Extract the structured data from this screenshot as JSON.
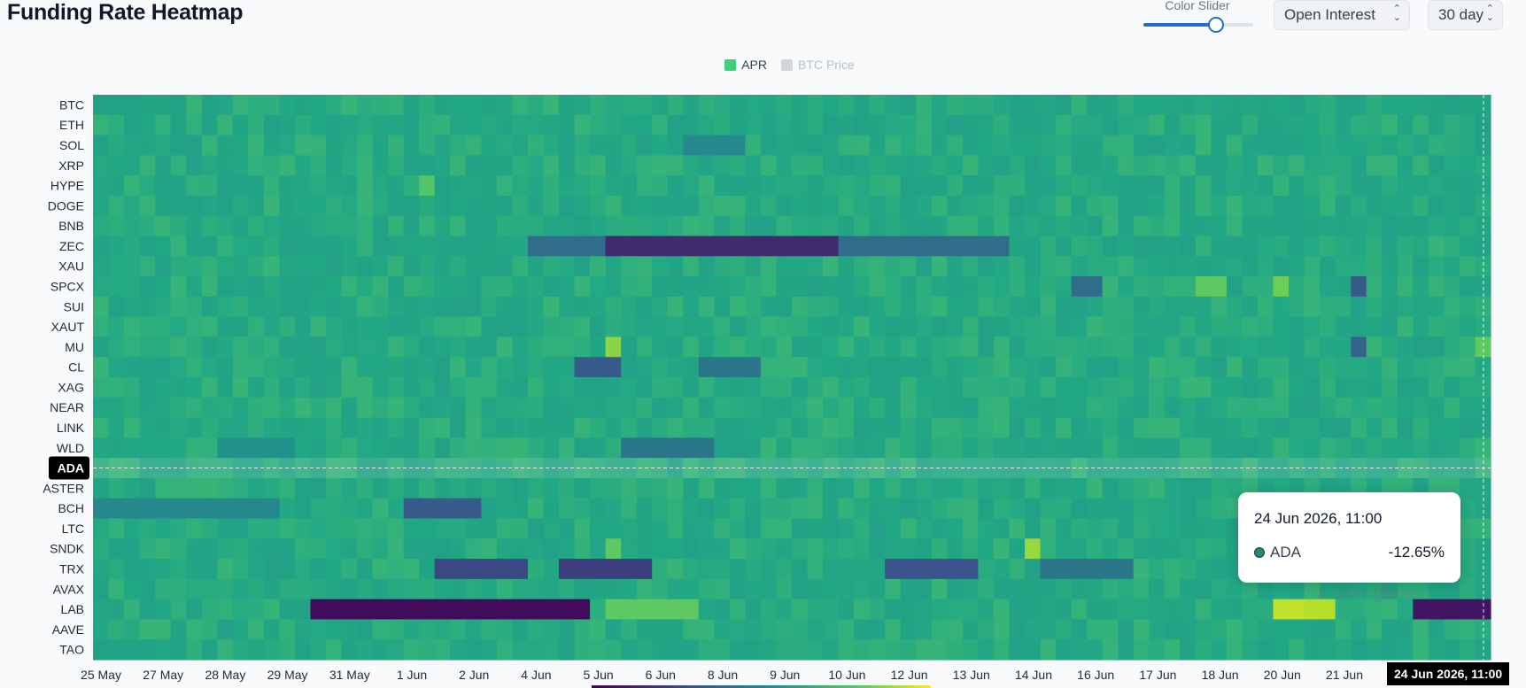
{
  "header": {
    "title": "Funding Rate Heatmap",
    "slider_label": "Color Slider",
    "slider_fraction": 0.66,
    "metric_select": "Open Interest",
    "range_select": "30 day"
  },
  "tooltip": {
    "date": "24 Jun 2026, 11:00",
    "series_name": "ADA",
    "value": "-12.65%"
  },
  "watermark": "coinglass",
  "colors": {
    "accent": "#1d6fd1",
    "apr": "#3ecf78",
    "btc_price": "#d1d5db",
    "highlight_row": "#000000"
  },
  "chart_data": {
    "type": "heatmap",
    "title": "Funding Rate Heatmap",
    "legend": [
      {
        "name": "APR",
        "color": "#3ecf78",
        "active": true
      },
      {
        "name": "BTC Price",
        "color": "#d1d5db",
        "active": false
      }
    ],
    "legend_placement": "top-center",
    "y_categories": [
      "BTC",
      "ETH",
      "SOL",
      "XRP",
      "HYPE",
      "DOGE",
      "BNB",
      "ZEC",
      "XAU",
      "SPCX",
      "SUI",
      "XAUT",
      "MU",
      "CL",
      "XAG",
      "NEAR",
      "LINK",
      "WLD",
      "ADA",
      "ASTER",
      "BCH",
      "LTC",
      "SNDK",
      "TRX",
      "AVAX",
      "LAB",
      "AAVE",
      "TAO"
    ],
    "x_tick_labels": [
      "25 May",
      "27 May",
      "28 May",
      "29 May",
      "31 May",
      "1 Jun",
      "2 Jun",
      "4 Jun",
      "5 Jun",
      "6 Jun",
      "8 Jun",
      "9 Jun",
      "10 Jun",
      "12 Jun",
      "13 Jun",
      "14 Jun",
      "16 Jun",
      "17 Jun",
      "18 Jun",
      "20 Jun",
      "21 Jun"
    ],
    "x_pointer_label": "24 Jun 2026, 11:00",
    "highlighted_category": "ADA",
    "columns": 90,
    "value_unit": "APR %",
    "base_value": 10,
    "hotspots": [
      {
        "symbol": "ZEC",
        "from": 28,
        "to": 58,
        "value": -45
      },
      {
        "symbol": "ZEC",
        "from": 33,
        "to": 47,
        "value": -80
      },
      {
        "symbol": "LAB",
        "from": 14,
        "to": 31,
        "value": -95
      },
      {
        "symbol": "LAB",
        "from": 76,
        "to": 77,
        "value": 75
      },
      {
        "symbol": "LAB",
        "from": 78,
        "to": 79,
        "value": 70
      },
      {
        "symbol": "LAB",
        "from": 85,
        "to": 89,
        "value": -90
      },
      {
        "symbol": "LAB",
        "from": 33,
        "to": 38,
        "value": 40
      },
      {
        "symbol": "TRX",
        "from": 22,
        "to": 27,
        "value": -65
      },
      {
        "symbol": "TRX",
        "from": 30,
        "to": 35,
        "value": -70
      },
      {
        "symbol": "TRX",
        "from": 51,
        "to": 56,
        "value": -60
      },
      {
        "symbol": "TRX",
        "from": 61,
        "to": 66,
        "value": -40
      },
      {
        "symbol": "BCH",
        "from": 0,
        "to": 11,
        "value": -30
      },
      {
        "symbol": "BCH",
        "from": 20,
        "to": 24,
        "value": -55
      },
      {
        "symbol": "WLD",
        "from": 34,
        "to": 39,
        "value": -40
      },
      {
        "symbol": "WLD",
        "from": 8,
        "to": 12,
        "value": -25
      },
      {
        "symbol": "CL",
        "from": 31,
        "to": 33,
        "value": -55
      },
      {
        "symbol": "CL",
        "from": 39,
        "to": 42,
        "value": -40
      },
      {
        "symbol": "SOL",
        "from": 38,
        "to": 41,
        "value": -30
      },
      {
        "symbol": "SPCX",
        "from": 63,
        "to": 64,
        "value": -45
      },
      {
        "symbol": "SPCX",
        "from": 71,
        "to": 72,
        "value": 40
      },
      {
        "symbol": "SPCX",
        "from": 76,
        "to": 76,
        "value": 45
      },
      {
        "symbol": "SPCX",
        "from": 81,
        "to": 81,
        "value": -55
      },
      {
        "symbol": "MU",
        "from": 33,
        "to": 33,
        "value": 55
      },
      {
        "symbol": "MU",
        "from": 81,
        "to": 81,
        "value": -50
      },
      {
        "symbol": "MU",
        "from": 89,
        "to": 89,
        "value": 40
      },
      {
        "symbol": "SNDK",
        "from": 33,
        "to": 33,
        "value": 40
      },
      {
        "symbol": "SNDK",
        "from": 60,
        "to": 60,
        "value": 60
      },
      {
        "symbol": "HYPE",
        "from": 21,
        "to": 21,
        "value": 35
      }
    ]
  }
}
